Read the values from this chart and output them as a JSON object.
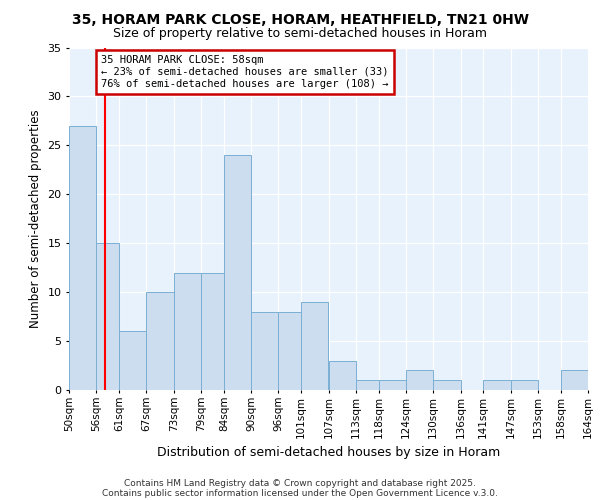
{
  "title1": "35, HORAM PARK CLOSE, HORAM, HEATHFIELD, TN21 0HW",
  "title2": "Size of property relative to semi-detached houses in Horam",
  "xlabel": "Distribution of semi-detached houses by size in Horam",
  "ylabel": "Number of semi-detached properties",
  "bin_edges": [
    50,
    56,
    61,
    67,
    73,
    79,
    84,
    90,
    96,
    101,
    107,
    113,
    118,
    124,
    130,
    136,
    141,
    147,
    153,
    158,
    164
  ],
  "heights": [
    27,
    15,
    6,
    10,
    12,
    12,
    24,
    8,
    8,
    9,
    3,
    1,
    1,
    2,
    1,
    0,
    1,
    1,
    0,
    2
  ],
  "bar_color": "#ccddf0",
  "bar_edge_color": "#7bafd4",
  "red_line_x": 58,
  "ylim": [
    0,
    35
  ],
  "yticks": [
    0,
    5,
    10,
    15,
    20,
    25,
    30,
    35
  ],
  "annotation_title": "35 HORAM PARK CLOSE: 58sqm",
  "annotation_line1": "← 23% of semi-detached houses are smaller (33)",
  "annotation_line2": "76% of semi-detached houses are larger (108) →",
  "footer1": "Contains HM Land Registry data © Crown copyright and database right 2025.",
  "footer2": "Contains public sector information licensed under the Open Government Licence v.3.0.",
  "bg_color": "#ddeeff",
  "plot_bg_color": "#e8f2fc",
  "annotation_box_color": "#ffffff",
  "annotation_border_color": "#cc0000"
}
